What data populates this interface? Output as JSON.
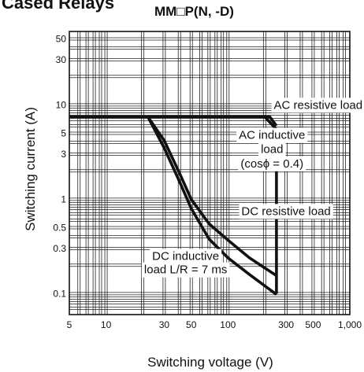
{
  "header": {
    "title": "Cased Relays"
  },
  "chart_data": {
    "type": "line",
    "title": "MM□P(N, -D)",
    "xlabel": "Switching voltage (V)",
    "ylabel": "Switching current (A)",
    "x_scale": "log",
    "y_scale": "log",
    "xlim": [
      5,
      1000
    ],
    "ylim": [
      0.06,
      60
    ],
    "grid": true,
    "x_ticks": [
      {
        "value": 5,
        "label": "5"
      },
      {
        "value": 10,
        "label": "10"
      },
      {
        "value": 30,
        "label": "30"
      },
      {
        "value": 50,
        "label": "50"
      },
      {
        "value": 100,
        "label": "100"
      },
      {
        "value": 300,
        "label": "300"
      },
      {
        "value": 500,
        "label": "500"
      },
      {
        "value": 1000,
        "label": "1,000"
      }
    ],
    "y_ticks": [
      {
        "value": 0.1,
        "label": "0.1"
      },
      {
        "value": 0.3,
        "label": "0.3"
      },
      {
        "value": 0.5,
        "label": "0.5"
      },
      {
        "value": 1,
        "label": "1"
      },
      {
        "value": 3,
        "label": "3"
      },
      {
        "value": 5,
        "label": "5"
      },
      {
        "value": 10,
        "label": "10"
      },
      {
        "value": 30,
        "label": "30"
      },
      {
        "value": 50,
        "label": "50"
      }
    ],
    "series": [
      {
        "name": "AC resistive load",
        "points": [
          [
            5,
            7.5
          ],
          [
            220,
            7.5
          ],
          [
            250,
            6
          ]
        ]
      },
      {
        "name": "AC inductive load (cosϕ = 0.4)",
        "points": [
          [
            5,
            7.5
          ],
          [
            200,
            7.5
          ],
          [
            250,
            5.5
          ],
          [
            250,
            0.1
          ]
        ]
      },
      {
        "name": "DC resistive load",
        "points": [
          [
            22,
            7.5
          ],
          [
            30,
            4.2
          ],
          [
            40,
            1.9
          ],
          [
            50,
            1.0
          ],
          [
            70,
            0.55
          ],
          [
            100,
            0.37
          ],
          [
            150,
            0.24
          ],
          [
            250,
            0.155
          ]
        ]
      },
      {
        "name": "DC inductive load L/R = 7 ms",
        "points": [
          [
            22,
            7.5
          ],
          [
            30,
            3.5
          ],
          [
            40,
            1.55
          ],
          [
            50,
            0.8
          ],
          [
            70,
            0.38
          ],
          [
            100,
            0.24
          ],
          [
            150,
            0.16
          ],
          [
            250,
            0.098
          ]
        ]
      }
    ],
    "annotations": [
      {
        "text": "AC resistive load",
        "x": 550,
        "y": 10
      },
      {
        "text": "AC inductive",
        "x": 230,
        "y": 4.8
      },
      {
        "text": "load",
        "x": 230,
        "y": 3.4
      },
      {
        "text": "(cosϕ = 0.4)",
        "x": 230,
        "y": 2.4
      },
      {
        "text": "DC resistive load",
        "x": 300,
        "y": 0.75
      },
      {
        "text": "DC inductive",
        "x": 45,
        "y": 0.25
      },
      {
        "text": "load L/R = 7 ms",
        "x": 45,
        "y": 0.18
      }
    ]
  }
}
